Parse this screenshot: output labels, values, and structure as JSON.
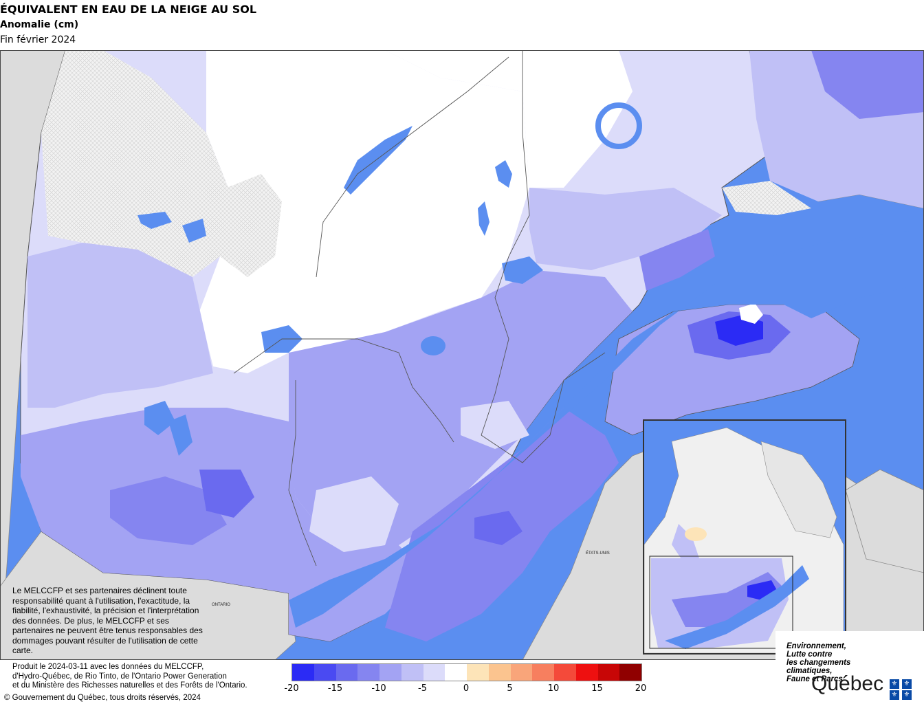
{
  "title": "ÉQUIVALENT EN EAU DE LA NEIGE AU SOL",
  "subtitle": "Anomalie (cm)",
  "period": "Fin février 2024",
  "map_labels": {
    "ontario": "ONTARIO",
    "usa": "ÉTATS-UNIS"
  },
  "disclaimer": "Le MELCCFP et ses partenaires déclinent toute responsabilité quant à l'utilisation, l'exactitude, la fiabilité, l'exhaustivité, la précision et l'interprétation des données. De plus, le MELCCFP et ses partenaires ne peuvent être tenus responsables des dommages pouvant résulter de l'utilisation de cette carte.",
  "credit_lines": [
    "Produit le 2024-03-11 avec les données du MELCCFP,",
    "d'Hydro-Québec, de Rio Tinto, de l'Ontario Power Generation",
    "et du Ministère des Richesses naturelles et des Forêts de l'Ontario."
  ],
  "copyright": "© Gouvernement du Québec, tous droits réservés, 2024",
  "legend": {
    "colors": [
      "#2b2bf5",
      "#4a4af2",
      "#6a6aef",
      "#8585f0",
      "#a3a3f3",
      "#c0c0f6",
      "#dcdcfa",
      "#ffffff",
      "#fde4b8",
      "#fbc48f",
      "#f9a57a",
      "#f77f5f",
      "#f44a3a",
      "#ee1010",
      "#c80606",
      "#900000"
    ],
    "labels": [
      "-20",
      "-15",
      "-10",
      "-5",
      "0",
      "5",
      "10",
      "15",
      "20"
    ]
  },
  "logo": {
    "ministry_lines": [
      "Environnement,",
      "Lutte contre",
      "les changements",
      "climatiques,",
      "Faune et Parcs"
    ],
    "wordmark": "Québec"
  },
  "colors": {
    "water": "#5b8ef0",
    "land_outside": "#dcdcdc",
    "anomaly_zero": "#ffffff"
  }
}
